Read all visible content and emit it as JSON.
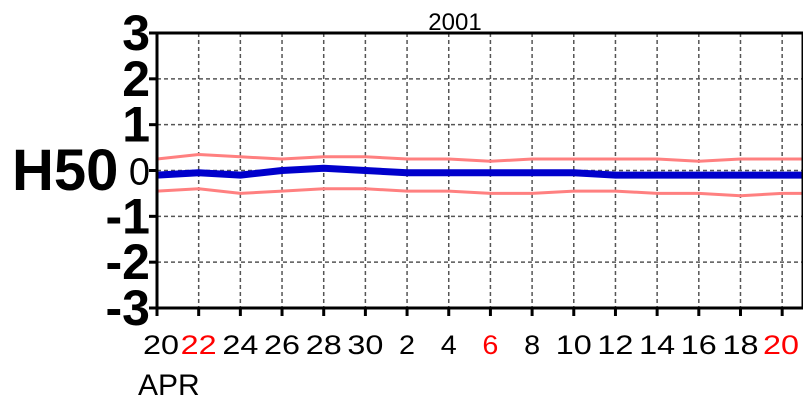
{
  "chart_data": {
    "type": "line",
    "title": "2001",
    "station_label": "H50",
    "month_label": "APR",
    "ylim": [
      -3,
      3
    ],
    "yticks": [
      "3",
      "2",
      "1",
      "0",
      "-1",
      "-2",
      "-3"
    ],
    "xlim": [
      0,
      31
    ],
    "x_ticks": [
      {
        "label": "20",
        "x": 0,
        "color": "#000000"
      },
      {
        "label": "22",
        "x": 2,
        "color": "#ff0000"
      },
      {
        "label": "24",
        "x": 4,
        "color": "#000000"
      },
      {
        "label": "26",
        "x": 6,
        "color": "#000000"
      },
      {
        "label": "28",
        "x": 8,
        "color": "#000000"
      },
      {
        "label": "30",
        "x": 10,
        "color": "#000000"
      },
      {
        "label": "2",
        "x": 12,
        "color": "#000000"
      },
      {
        "label": "4",
        "x": 14,
        "color": "#000000"
      },
      {
        "label": "6",
        "x": 16,
        "color": "#ff0000"
      },
      {
        "label": "8",
        "x": 18,
        "color": "#000000"
      },
      {
        "label": "10",
        "x": 20,
        "color": "#000000"
      },
      {
        "label": "12",
        "x": 22,
        "color": "#000000"
      },
      {
        "label": "14",
        "x": 24,
        "color": "#000000"
      },
      {
        "label": "16",
        "x": 26,
        "color": "#000000"
      },
      {
        "label": "18",
        "x": 28,
        "color": "#000000"
      },
      {
        "label": "20",
        "x": 30,
        "color": "#ff0000"
      }
    ],
    "grid": true,
    "series": [
      {
        "color": "#ff8080",
        "x": [
          0,
          2,
          4,
          6,
          8,
          10,
          12,
          14,
          16,
          18,
          20,
          22,
          24,
          26,
          28,
          30,
          31
        ],
        "values": [
          0.25,
          0.35,
          0.3,
          0.25,
          0.3,
          0.3,
          0.25,
          0.25,
          0.2,
          0.25,
          0.25,
          0.25,
          0.25,
          0.2,
          0.25,
          0.25,
          0.25
        ]
      },
      {
        "color": "#0000cc",
        "x": [
          0,
          2,
          4,
          6,
          8,
          10,
          12,
          14,
          16,
          18,
          20,
          22,
          24,
          26,
          28,
          30,
          31
        ],
        "values": [
          -0.1,
          -0.05,
          -0.1,
          0.0,
          0.05,
          0.0,
          -0.05,
          -0.05,
          -0.05,
          -0.05,
          -0.05,
          -0.1,
          -0.1,
          -0.1,
          -0.1,
          -0.1,
          -0.1
        ]
      },
      {
        "color": "#ff8080",
        "x": [
          0,
          2,
          4,
          6,
          8,
          10,
          12,
          14,
          16,
          18,
          20,
          22,
          24,
          26,
          28,
          30,
          31
        ],
        "values": [
          -0.45,
          -0.4,
          -0.5,
          -0.45,
          -0.4,
          -0.4,
          -0.45,
          -0.45,
          -0.5,
          -0.5,
          -0.45,
          -0.45,
          -0.5,
          -0.5,
          -0.55,
          -0.5,
          -0.5
        ]
      }
    ]
  }
}
